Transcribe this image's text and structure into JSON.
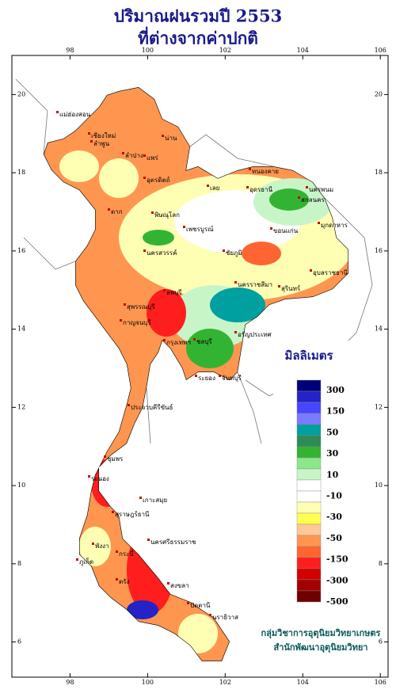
{
  "header": {
    "title": [
      "ปริมาณฝนรวมปี 2553",
      "ที่ต่างจากค่าปกติ"
    ]
  },
  "map": {
    "xlim": [
      96.5,
      106.2
    ],
    "ylim": [
      5.1,
      21.0
    ],
    "xticks": [
      98,
      100,
      102,
      104,
      106
    ],
    "yticks": [
      6,
      8,
      10,
      12,
      14,
      16,
      18,
      20
    ],
    "places": [
      "แม่ฮ่องสอน",
      "เชียงใหม่",
      "ลำพูน",
      "ลำปาง",
      "น่าน",
      "แพร่",
      "อุตรดิตถ์",
      "ตาก",
      "เลย",
      "หนองคาย",
      "อุดรธานี",
      "สกลนคร",
      "นครพนม",
      "มุกดาหาร",
      "ขอนแก่น",
      "พิษณุโลก",
      "เพชรบูรณ์",
      "นครสวรรค์",
      "ชัยภูมิ",
      "นครราชสีมา",
      "สุรินทร์",
      "อุบลราชธานี",
      "ลพบุรี",
      "สุพรรณบุรี",
      "กาญจนบุรี",
      "กรุงเทพฯ",
      "ชลบุรี",
      "ระยอง",
      "จันทบุรี",
      "อรัญประเทศ",
      "ประจวบคีรีขันธ์",
      "ชุมพร",
      "ระนอง",
      "สุราษฎร์ธานี",
      "เกาะสมุย",
      "นครศรีธรรมราช",
      "พังงา",
      "ภูเก็ต",
      "กระบี่",
      "ตรัง",
      "สงขลา",
      "ปัตตานี",
      "นราธิวาส"
    ]
  },
  "legend": {
    "title": "มิลลิเมตร",
    "colors": [
      "#00007a",
      "#2323c8",
      "#4646ff",
      "#7b7bff",
      "#00a0a0",
      "#2e8b57",
      "#32b432",
      "#8ce68c",
      "#c8f5c8",
      "#ffffff",
      "#ffffff",
      "#ffffb4",
      "#ffff50",
      "#ffc896",
      "#ff9650",
      "#ff6432",
      "#ff1e1e",
      "#d20000",
      "#a00000",
      "#6e0000"
    ],
    "labels": [
      300,
      150,
      50,
      30,
      10,
      -10,
      -30,
      -50,
      -150,
      -300,
      -500
    ]
  },
  "credit": [
    "กลุ่มวิชาการอุตุนิยมวิทยาเกษตร",
    "สำนักพัฒนาอุตุนิยมวิทยา"
  ]
}
